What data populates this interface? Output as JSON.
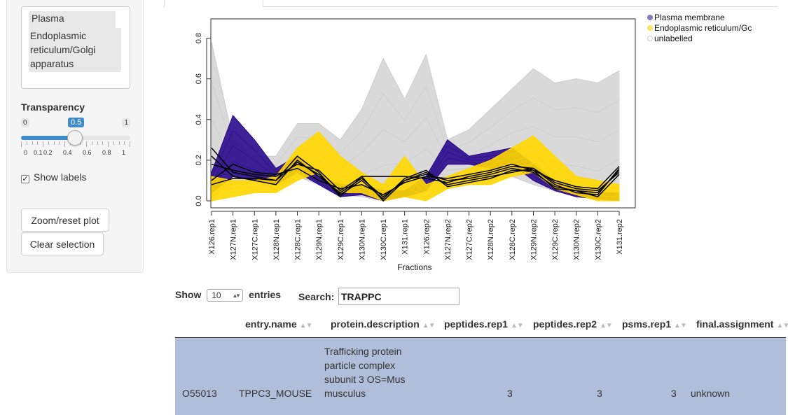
{
  "sidebar": {
    "selected_classes": [
      "Plasma membrane",
      "Endoplasmic reticulum/Golgi apparatus"
    ],
    "transparency": {
      "label": "Transparency",
      "min": "0",
      "max": "1",
      "value_label": "0.5",
      "value": 0.5,
      "tick_labels": [
        "0",
        "0.1",
        "0.2",
        "0.4",
        "0.6",
        "0.8",
        "1"
      ]
    },
    "show_labels": {
      "label": "Show labels",
      "checked": true
    },
    "zoom_button": "Zoom/reset plot",
    "clear_button": "Clear selection"
  },
  "plot": {
    "legend": [
      {
        "label": "Plasma membrane",
        "color": "#7f7fbf"
      },
      {
        "label": "Endoplasmic reticulum/Gc",
        "color": "#ffe359"
      },
      {
        "label": "unlabelled",
        "color": "#ffffff"
      }
    ]
  },
  "chart_data": {
    "type": "line",
    "xlabel": "Fractions",
    "ylabel": "",
    "ylim": [
      0,
      0.85
    ],
    "yticks": [
      "0.0",
      "0.2",
      "0.4",
      "0.6",
      "0.8"
    ],
    "categories": [
      "X126.rep1",
      "X127N.rep1",
      "X127C.rep1",
      "X128N.rep1",
      "X128C.rep1",
      "X129N.rep1",
      "X129C.rep1",
      "X130N.rep1",
      "X130C.rep1",
      "X131.rep1",
      "X126.rep2",
      "X127N.rep2",
      "X127C.rep2",
      "X128N.rep2",
      "X128C.rep2",
      "X129N.rep2",
      "X129C.rep2",
      "X130N.rep2",
      "X130C.rep2",
      "X131.rep2"
    ],
    "colors": {
      "unlabelled": "#d9d9d9",
      "plasma_membrane": "#2a0a8c",
      "er_golgi": "#ffd700",
      "selected": "#000000"
    },
    "series": [
      {
        "name": "unlabelled",
        "band_low": [
          0.02,
          0.08,
          0.1,
          0.05,
          0.12,
          0.08,
          0.03,
          0.02,
          0.0,
          0.08,
          0.1,
          0.1,
          0.1,
          0.1,
          0.12,
          0.08,
          0.05,
          0.03,
          0.0,
          0.06
        ],
        "band_high": [
          0.78,
          0.3,
          0.22,
          0.22,
          0.38,
          0.38,
          0.3,
          0.45,
          0.7,
          0.5,
          0.72,
          0.3,
          0.35,
          0.45,
          0.55,
          0.65,
          0.58,
          0.6,
          0.58,
          0.64
        ]
      },
      {
        "name": "Plasma membrane",
        "band_low": [
          0.04,
          0.12,
          0.1,
          0.08,
          0.14,
          0.08,
          0.02,
          0.03,
          0.0,
          0.02,
          0.05,
          0.18,
          0.18,
          0.16,
          0.18,
          0.1,
          0.05,
          0.02,
          0.01,
          0.0
        ],
        "band_high": [
          0.14,
          0.42,
          0.3,
          0.16,
          0.22,
          0.12,
          0.08,
          0.08,
          0.05,
          0.05,
          0.12,
          0.3,
          0.22,
          0.24,
          0.26,
          0.18,
          0.1,
          0.06,
          0.04,
          0.04
        ]
      },
      {
        "name": "Endoplasmic reticulum/Golgi apparatus",
        "band_low": [
          0.0,
          0.02,
          0.04,
          0.04,
          0.1,
          0.14,
          0.04,
          0.04,
          0.0,
          0.02,
          0.0,
          0.06,
          0.08,
          0.08,
          0.12,
          0.14,
          0.06,
          0.03,
          0.0,
          0.0
        ],
        "band_high": [
          0.12,
          0.1,
          0.1,
          0.12,
          0.26,
          0.34,
          0.22,
          0.14,
          0.08,
          0.22,
          0.08,
          0.12,
          0.16,
          0.2,
          0.26,
          0.32,
          0.22,
          0.12,
          0.1,
          0.08
        ]
      },
      {
        "name": "TRAPPC",
        "lines": [
          [
            0.26,
            0.14,
            0.12,
            0.1,
            0.22,
            0.14,
            0.02,
            0.12,
            0.0,
            0.1,
            0.14,
            0.08,
            0.1,
            0.12,
            0.14,
            0.16,
            0.08,
            0.04,
            0.03,
            0.16
          ],
          [
            0.22,
            0.12,
            0.1,
            0.08,
            0.2,
            0.12,
            0.04,
            0.11,
            0.02,
            0.1,
            0.13,
            0.1,
            0.11,
            0.13,
            0.16,
            0.14,
            0.07,
            0.05,
            0.04,
            0.15
          ],
          [
            0.18,
            0.15,
            0.13,
            0.12,
            0.18,
            0.15,
            0.05,
            0.12,
            0.12,
            0.12,
            0.11,
            0.09,
            0.12,
            0.14,
            0.17,
            0.16,
            0.09,
            0.06,
            0.05,
            0.14
          ],
          [
            0.1,
            0.18,
            0.14,
            0.13,
            0.16,
            0.1,
            0.06,
            0.08,
            0.03,
            0.09,
            0.12,
            0.11,
            0.13,
            0.15,
            0.18,
            0.15,
            0.1,
            0.07,
            0.06,
            0.17
          ],
          [
            0.08,
            0.11,
            0.11,
            0.1,
            0.19,
            0.13,
            0.03,
            0.1,
            0.01,
            0.11,
            0.15,
            0.07,
            0.09,
            0.11,
            0.15,
            0.15,
            0.06,
            0.05,
            0.02,
            0.13
          ]
        ]
      }
    ],
    "legend_position": "top-right"
  },
  "table": {
    "show_label": "Show",
    "entries_label": "entries",
    "page_length": "10",
    "search_label": "Search:",
    "search_value": "TRAPPC",
    "columns": [
      "",
      "entry.name",
      "protein.description",
      "peptides.rep1",
      "peptides.rep2",
      "psms.rep1",
      "final.assignment"
    ],
    "rows": [
      [
        "O55013",
        "TPPC3_MOUSE",
        "Trafficking protein particle complex subunit 3 OS=Mus musculus",
        "3",
        "3",
        "3",
        "unknown"
      ]
    ]
  }
}
